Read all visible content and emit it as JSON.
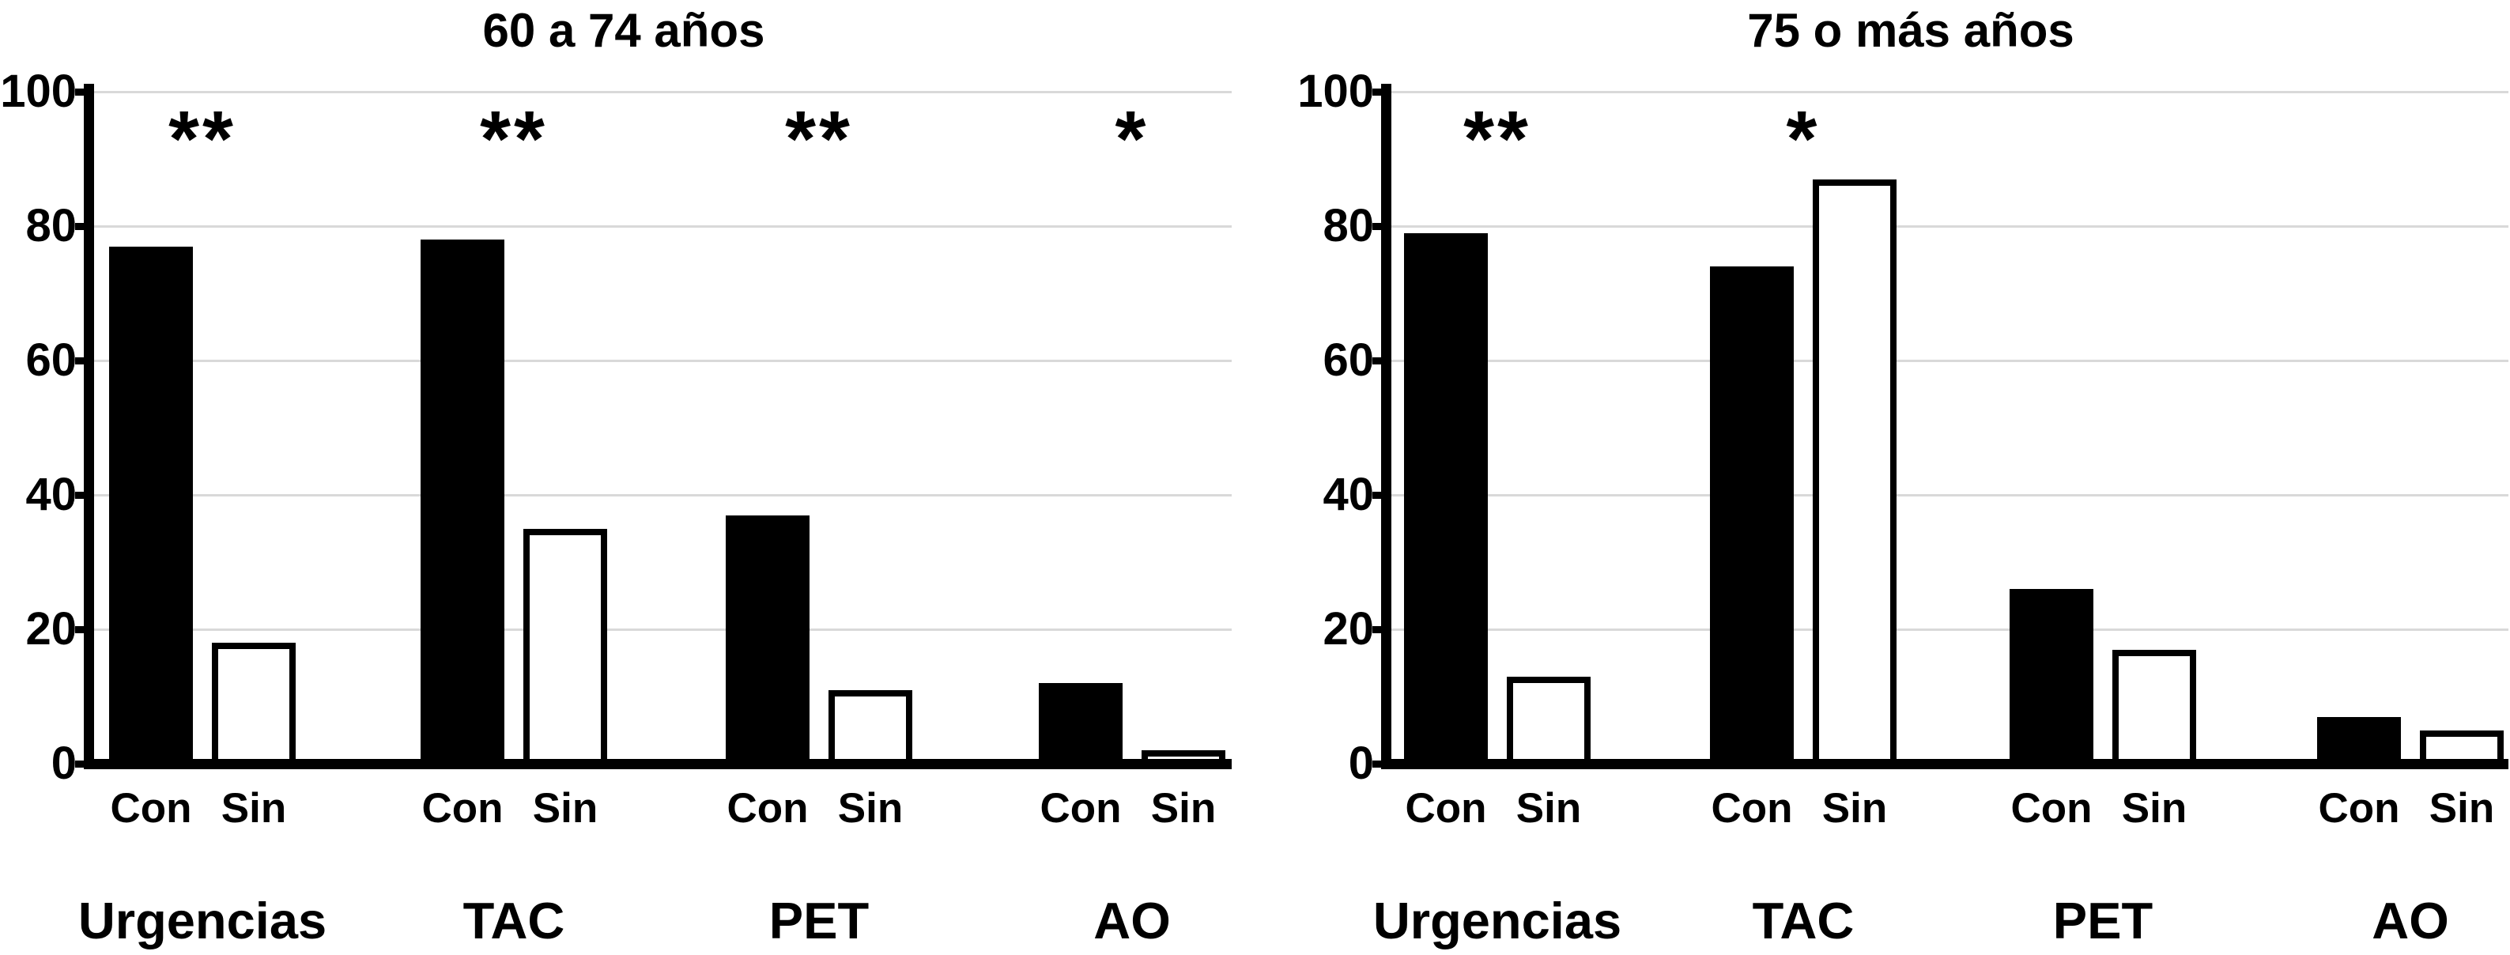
{
  "figure": {
    "kind": "two-panel grouped bar figure",
    "background": "#ffffff"
  },
  "colors": {
    "con_bar": "#000000",
    "sin_bar_fill": "#ffffff",
    "sin_bar_border": "#000000",
    "gridline": "#d9d9d9",
    "axis": "#000000",
    "text": "#000000",
    "background": "#ffffff"
  },
  "bar_series_labels": {
    "con": "Con",
    "sin": "Sin"
  },
  "chart_data": [
    {
      "type": "bar",
      "title": "60 a 74 años",
      "categories": [
        "Urgencias",
        "TAC",
        "PET",
        "AO"
      ],
      "series": [
        {
          "name": "Con",
          "values": [
            77,
            78,
            37,
            12
          ]
        },
        {
          "name": "Sin",
          "values": [
            18,
            35,
            11,
            2
          ]
        }
      ],
      "significance": [
        "**",
        "**",
        "**",
        "*"
      ],
      "bar_sublabels": [
        "Con",
        "Sin"
      ],
      "ylim": [
        0,
        100
      ],
      "yticks": [
        0,
        20,
        40,
        60,
        80,
        100
      ],
      "grid": true,
      "legend_position": "none"
    },
    {
      "type": "bar",
      "title": "75 o más años",
      "categories": [
        "Urgencias",
        "TAC",
        "PET",
        "AO"
      ],
      "series": [
        {
          "name": "Con",
          "values": [
            79,
            74,
            26,
            7
          ]
        },
        {
          "name": "Sin",
          "values": [
            13,
            87,
            17,
            5
          ]
        }
      ],
      "significance": [
        "**",
        "*",
        "",
        ""
      ],
      "bar_sublabels": [
        "Con",
        "Sin"
      ],
      "ylim": [
        0,
        100
      ],
      "yticks": [
        0,
        20,
        40,
        60,
        80,
        100
      ],
      "grid": true,
      "legend_position": "none"
    }
  ]
}
